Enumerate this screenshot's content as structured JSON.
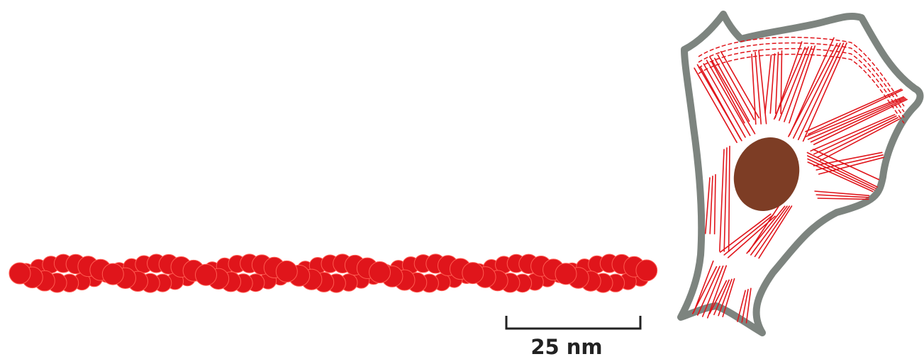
{
  "scale_bar": {
    "label": "25 nm"
  },
  "colors": {
    "filament": "#e0151b",
    "filament_highlight": "#ff5a50",
    "cell_outline": "#7d847f",
    "cell_fill": "#ffffff",
    "nucleus": "#7d3d25",
    "fiber": "#e0151b",
    "scale_bar": "#222222"
  }
}
